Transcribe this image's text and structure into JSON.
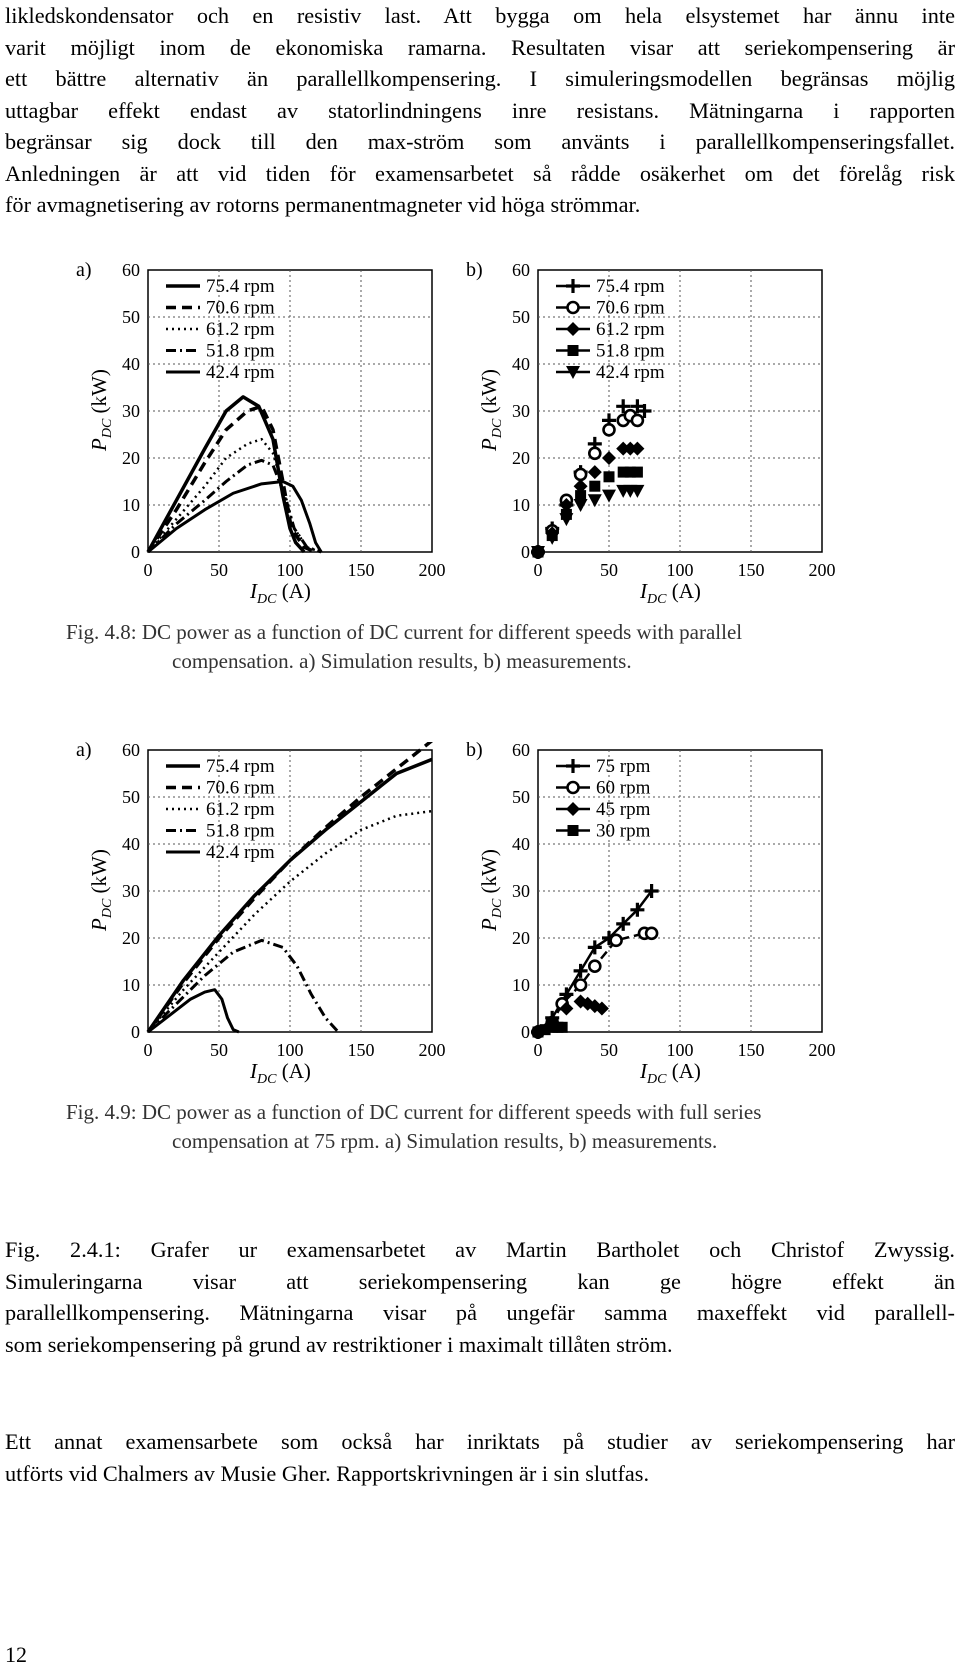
{
  "intro_lines": [
    "likledskondensator och en resistiv last. Att bygga om hela elsystemet har ännu inte",
    "varit möjligt inom de ekonomiska ramarna. Resultaten visar att seriekompensering är",
    "ett bättre alternativ än parallellkompensering. I simuleringsmodellen begränsas möjlig",
    "uttagbar effekt endast av statorlindningens inre resistans. Mätningarna i rapporten",
    "begränsar sig dock till den max-ström som använts i parallellkompenseringsfallet.",
    "Anledningen är att vid tiden för examensarbetet så rådde osäkerhet om det förelåg risk",
    "för avmagnetisering av rotorns permanentmagneter vid höga strömmar."
  ],
  "figures": [
    {
      "id": "fig48",
      "caption_lines": [
        "Fig. 4.8: DC power as a function of DC current for different speeds with parallel",
        "compensation. a) Simulation results, b) measurements."
      ],
      "panels": [
        {
          "label": "a)",
          "ylabel": "P",
          "ylabel_sub": "DC",
          "ylabel_unit": "(kW)",
          "xlabel": "I",
          "xlabel_sub": "DC",
          "xlabel_unit": "(A)",
          "xticks": [
            "0",
            "50",
            "100",
            "150",
            "200"
          ],
          "yticks": [
            "0",
            "10",
            "20",
            "30",
            "40",
            "50",
            "60"
          ],
          "legend": [
            "75.4 rpm",
            "70.6 rpm",
            "61.2 rpm",
            "51.8 rpm",
            "42.4 rpm"
          ]
        },
        {
          "label": "b)",
          "ylabel": "P",
          "ylabel_sub": "DC",
          "ylabel_unit": "(kW)",
          "xlabel": "I",
          "xlabel_sub": "DC",
          "xlabel_unit": "(A)",
          "xticks": [
            "0",
            "50",
            "100",
            "150",
            "200"
          ],
          "yticks": [
            "0",
            "10",
            "20",
            "30",
            "40",
            "50",
            "60"
          ],
          "legend": [
            "75.4 rpm",
            "70.6 rpm",
            "61.2 rpm",
            "51.8 rpm",
            "42.4 rpm"
          ]
        }
      ]
    },
    {
      "id": "fig49",
      "caption_lines": [
        "Fig. 4.9: DC power as a function of DC current for different speeds with full series",
        "compensation at 75 rpm. a) Simulation results, b) measurements."
      ],
      "panels": [
        {
          "label": "a)",
          "ylabel": "P",
          "ylabel_sub": "DC",
          "ylabel_unit": "(kW)",
          "xlabel": "I",
          "xlabel_sub": "DC",
          "xlabel_unit": "(A)",
          "xticks": [
            "0",
            "50",
            "100",
            "150",
            "200"
          ],
          "yticks": [
            "0",
            "10",
            "20",
            "30",
            "40",
            "50",
            "60"
          ],
          "legend": [
            "75.4 rpm",
            "70.6 rpm",
            "61.2 rpm",
            "51.8 rpm",
            "42.4 rpm"
          ]
        },
        {
          "label": "b)",
          "ylabel": "P",
          "ylabel_sub": "DC",
          "ylabel_unit": "(kW)",
          "xlabel": "I",
          "xlabel_sub": "DC",
          "xlabel_unit": "(A)",
          "xticks": [
            "0",
            "50",
            "100",
            "150",
            "200"
          ],
          "yticks": [
            "0",
            "10",
            "20",
            "30",
            "40",
            "50",
            "60"
          ],
          "legend": [
            "75 rpm",
            "60 rpm",
            "45 rpm",
            "30 rpm"
          ]
        }
      ]
    }
  ],
  "chart_data": [
    {
      "type": "line",
      "figure": "Fig. 4.8 a)",
      "xlim": [
        0,
        200
      ],
      "ylim": [
        0,
        60
      ],
      "grid": true,
      "legend_position": "top-left",
      "series": [
        {
          "name": "75.4 rpm",
          "points": [
            [
              0,
              0
            ],
            [
              20,
              11
            ],
            [
              40,
              22
            ],
            [
              55,
              30
            ],
            [
              67,
              33
            ],
            [
              78,
              31
            ],
            [
              88,
              24
            ],
            [
              95,
              12
            ],
            [
              100,
              5
            ],
            [
              104,
              2
            ],
            [
              110,
              0
            ]
          ]
        },
        {
          "name": "70.6 rpm",
          "points": [
            [
              0,
              0
            ],
            [
              20,
              9
            ],
            [
              40,
              19
            ],
            [
              55,
              26
            ],
            [
              70,
              30
            ],
            [
              80,
              31
            ],
            [
              88,
              26
            ],
            [
              95,
              15
            ],
            [
              101,
              5
            ],
            [
              110,
              1
            ],
            [
              118,
              0
            ]
          ]
        },
        {
          "name": "61.2 rpm",
          "points": [
            [
              0,
              0
            ],
            [
              20,
              7
            ],
            [
              40,
              14
            ],
            [
              55,
              20
            ],
            [
              70,
              23
            ],
            [
              80,
              24
            ],
            [
              88,
              21
            ],
            [
              95,
              14
            ],
            [
              103,
              5
            ],
            [
              112,
              1
            ],
            [
              122,
              0
            ]
          ]
        },
        {
          "name": "51.8 rpm",
          "points": [
            [
              0,
              0
            ],
            [
              20,
              6
            ],
            [
              40,
              11
            ],
            [
              55,
              15
            ],
            [
              70,
              18.5
            ],
            [
              80,
              19.5
            ],
            [
              88,
              18.5
            ],
            [
              95,
              13
            ],
            [
              103,
              5
            ],
            [
              112,
              1
            ],
            [
              122,
              0
            ]
          ]
        },
        {
          "name": "42.4 rpm",
          "points": [
            [
              0,
              0
            ],
            [
              20,
              5
            ],
            [
              40,
              9
            ],
            [
              60,
              12.5
            ],
            [
              80,
              14.5
            ],
            [
              95,
              15
            ],
            [
              102,
              14
            ],
            [
              108,
              11
            ],
            [
              114,
              6
            ],
            [
              118,
              2
            ],
            [
              122,
              0
            ]
          ]
        }
      ]
    },
    {
      "type": "scatter",
      "figure": "Fig. 4.8 b)",
      "xlim": [
        0,
        200
      ],
      "ylim": [
        0,
        60
      ],
      "grid": true,
      "legend_position": "top-left",
      "series": [
        {
          "name": "75.4 rpm",
          "points": [
            [
              0,
              0
            ],
            [
              10,
              5
            ],
            [
              20,
              10
            ],
            [
              30,
              17
            ],
            [
              40,
              23
            ],
            [
              50,
              28
            ],
            [
              60,
              31
            ],
            [
              70,
              31
            ],
            [
              75,
              30
            ]
          ]
        },
        {
          "name": "70.6 rpm",
          "points": [
            [
              0,
              0
            ],
            [
              10,
              4.5
            ],
            [
              20,
              11
            ],
            [
              30,
              16.5
            ],
            [
              40,
              21
            ],
            [
              50,
              26
            ],
            [
              60,
              28
            ],
            [
              65,
              29
            ],
            [
              70,
              28
            ]
          ]
        },
        {
          "name": "61.2 rpm",
          "points": [
            [
              0,
              0
            ],
            [
              10,
              4
            ],
            [
              20,
              10
            ],
            [
              30,
              14
            ],
            [
              40,
              17
            ],
            [
              50,
              20
            ],
            [
              60,
              22
            ],
            [
              65,
              22
            ],
            [
              70,
              22
            ]
          ]
        },
        {
          "name": "51.8 rpm",
          "points": [
            [
              0,
              0
            ],
            [
              10,
              3.5
            ],
            [
              20,
              8
            ],
            [
              30,
              12
            ],
            [
              40,
              14
            ],
            [
              50,
              16
            ],
            [
              60,
              17
            ],
            [
              65,
              17
            ],
            [
              70,
              17
            ]
          ]
        },
        {
          "name": "42.4 rpm",
          "points": [
            [
              0,
              0
            ],
            [
              10,
              3
            ],
            [
              20,
              7
            ],
            [
              30,
              10
            ],
            [
              40,
              11
            ],
            [
              50,
              12
            ],
            [
              60,
              13
            ],
            [
              65,
              13
            ],
            [
              70,
              13
            ]
          ]
        }
      ]
    },
    {
      "type": "line",
      "figure": "Fig. 4.9 a)",
      "xlim": [
        0,
        200
      ],
      "ylim": [
        0,
        60
      ],
      "grid": true,
      "legend_position": "top-left",
      "series": [
        {
          "name": "75.4 rpm",
          "points": [
            [
              0,
              0
            ],
            [
              25,
              11
            ],
            [
              50,
              20.5
            ],
            [
              75,
              29
            ],
            [
              100,
              36.5
            ],
            [
              125,
              43
            ],
            [
              150,
              49
            ],
            [
              175,
              55
            ],
            [
              200,
              58
            ]
          ]
        },
        {
          "name": "70.6 rpm",
          "points": [
            [
              0,
              0
            ],
            [
              25,
              10.5
            ],
            [
              50,
              20
            ],
            [
              75,
              28.5
            ],
            [
              100,
              36.5
            ],
            [
              125,
              43.5
            ],
            [
              150,
              50
            ],
            [
              175,
              56
            ],
            [
              200,
              62
            ]
          ]
        },
        {
          "name": "61.2 rpm",
          "points": [
            [
              0,
              0
            ],
            [
              25,
              9
            ],
            [
              50,
              17
            ],
            [
              75,
              25
            ],
            [
              100,
              32
            ],
            [
              125,
              38
            ],
            [
              150,
              43
            ],
            [
              175,
              46
            ],
            [
              200,
              47
            ]
          ]
        },
        {
          "name": "51.8 rpm",
          "points": [
            [
              0,
              0
            ],
            [
              20,
              6
            ],
            [
              40,
              12
            ],
            [
              60,
              17
            ],
            [
              80,
              19.5
            ],
            [
              95,
              18
            ],
            [
              105,
              14
            ],
            [
              115,
              8
            ],
            [
              125,
              3
            ],
            [
              134,
              0
            ]
          ]
        },
        {
          "name": "42.4 rpm",
          "points": [
            [
              0,
              0
            ],
            [
              15,
              3.5
            ],
            [
              30,
              7
            ],
            [
              40,
              8.5
            ],
            [
              47,
              9
            ],
            [
              52,
              7
            ],
            [
              56,
              3
            ],
            [
              60,
              0.5
            ],
            [
              64,
              0
            ]
          ]
        }
      ]
    },
    {
      "type": "scatter",
      "figure": "Fig. 4.9 b)",
      "xlim": [
        0,
        200
      ],
      "ylim": [
        0,
        60
      ],
      "grid": true,
      "legend_position": "top-left",
      "series": [
        {
          "name": "75 rpm",
          "points": [
            [
              0,
              0
            ],
            [
              10,
              3
            ],
            [
              20,
              8
            ],
            [
              30,
              13
            ],
            [
              40,
              18
            ],
            [
              50,
              20
            ],
            [
              60,
              23
            ],
            [
              70,
              26
            ],
            [
              80,
              30
            ]
          ]
        },
        {
          "name": "60 rpm",
          "points": [
            [
              0,
              0
            ],
            [
              10,
              2
            ],
            [
              17,
              6
            ],
            [
              30,
              10
            ],
            [
              40,
              14
            ],
            [
              55,
              19.5
            ],
            [
              75,
              21
            ],
            [
              80,
              21
            ]
          ]
        },
        {
          "name": "45 rpm",
          "points": [
            [
              0,
              0
            ],
            [
              10,
              2
            ],
            [
              20,
              5
            ],
            [
              30,
              6.5
            ],
            [
              35,
              6
            ],
            [
              40,
              5.5
            ],
            [
              45,
              5
            ]
          ]
        },
        {
          "name": "30 rpm",
          "points": [
            [
              0,
              0
            ],
            [
              5,
              0.5
            ],
            [
              10,
              1
            ],
            [
              14,
              1
            ],
            [
              17,
              1
            ]
          ]
        }
      ]
    }
  ],
  "caption": {
    "lead": "Fig. 2.4.1:",
    "lines": [
      " Grafer ur examensarbetet av Martin Bartholet och Christof Zwyssig.",
      "Simuleringarna visar att seriekompensering kan ge högre effekt än",
      "parallellkompensering. Mätningarna visar på ungefär samma maxeffekt vid parallell-",
      "som seriekompensering på grund av restriktioner i maximalt tillåten ström."
    ]
  },
  "closing_lines": [
    "Ett annat examensarbete som också har inriktats på studier av seriekompensering har",
    "utförts vid Chalmers av Musie Gher. Rapportskrivningen är i sin slutfas."
  ],
  "page_number": "12"
}
